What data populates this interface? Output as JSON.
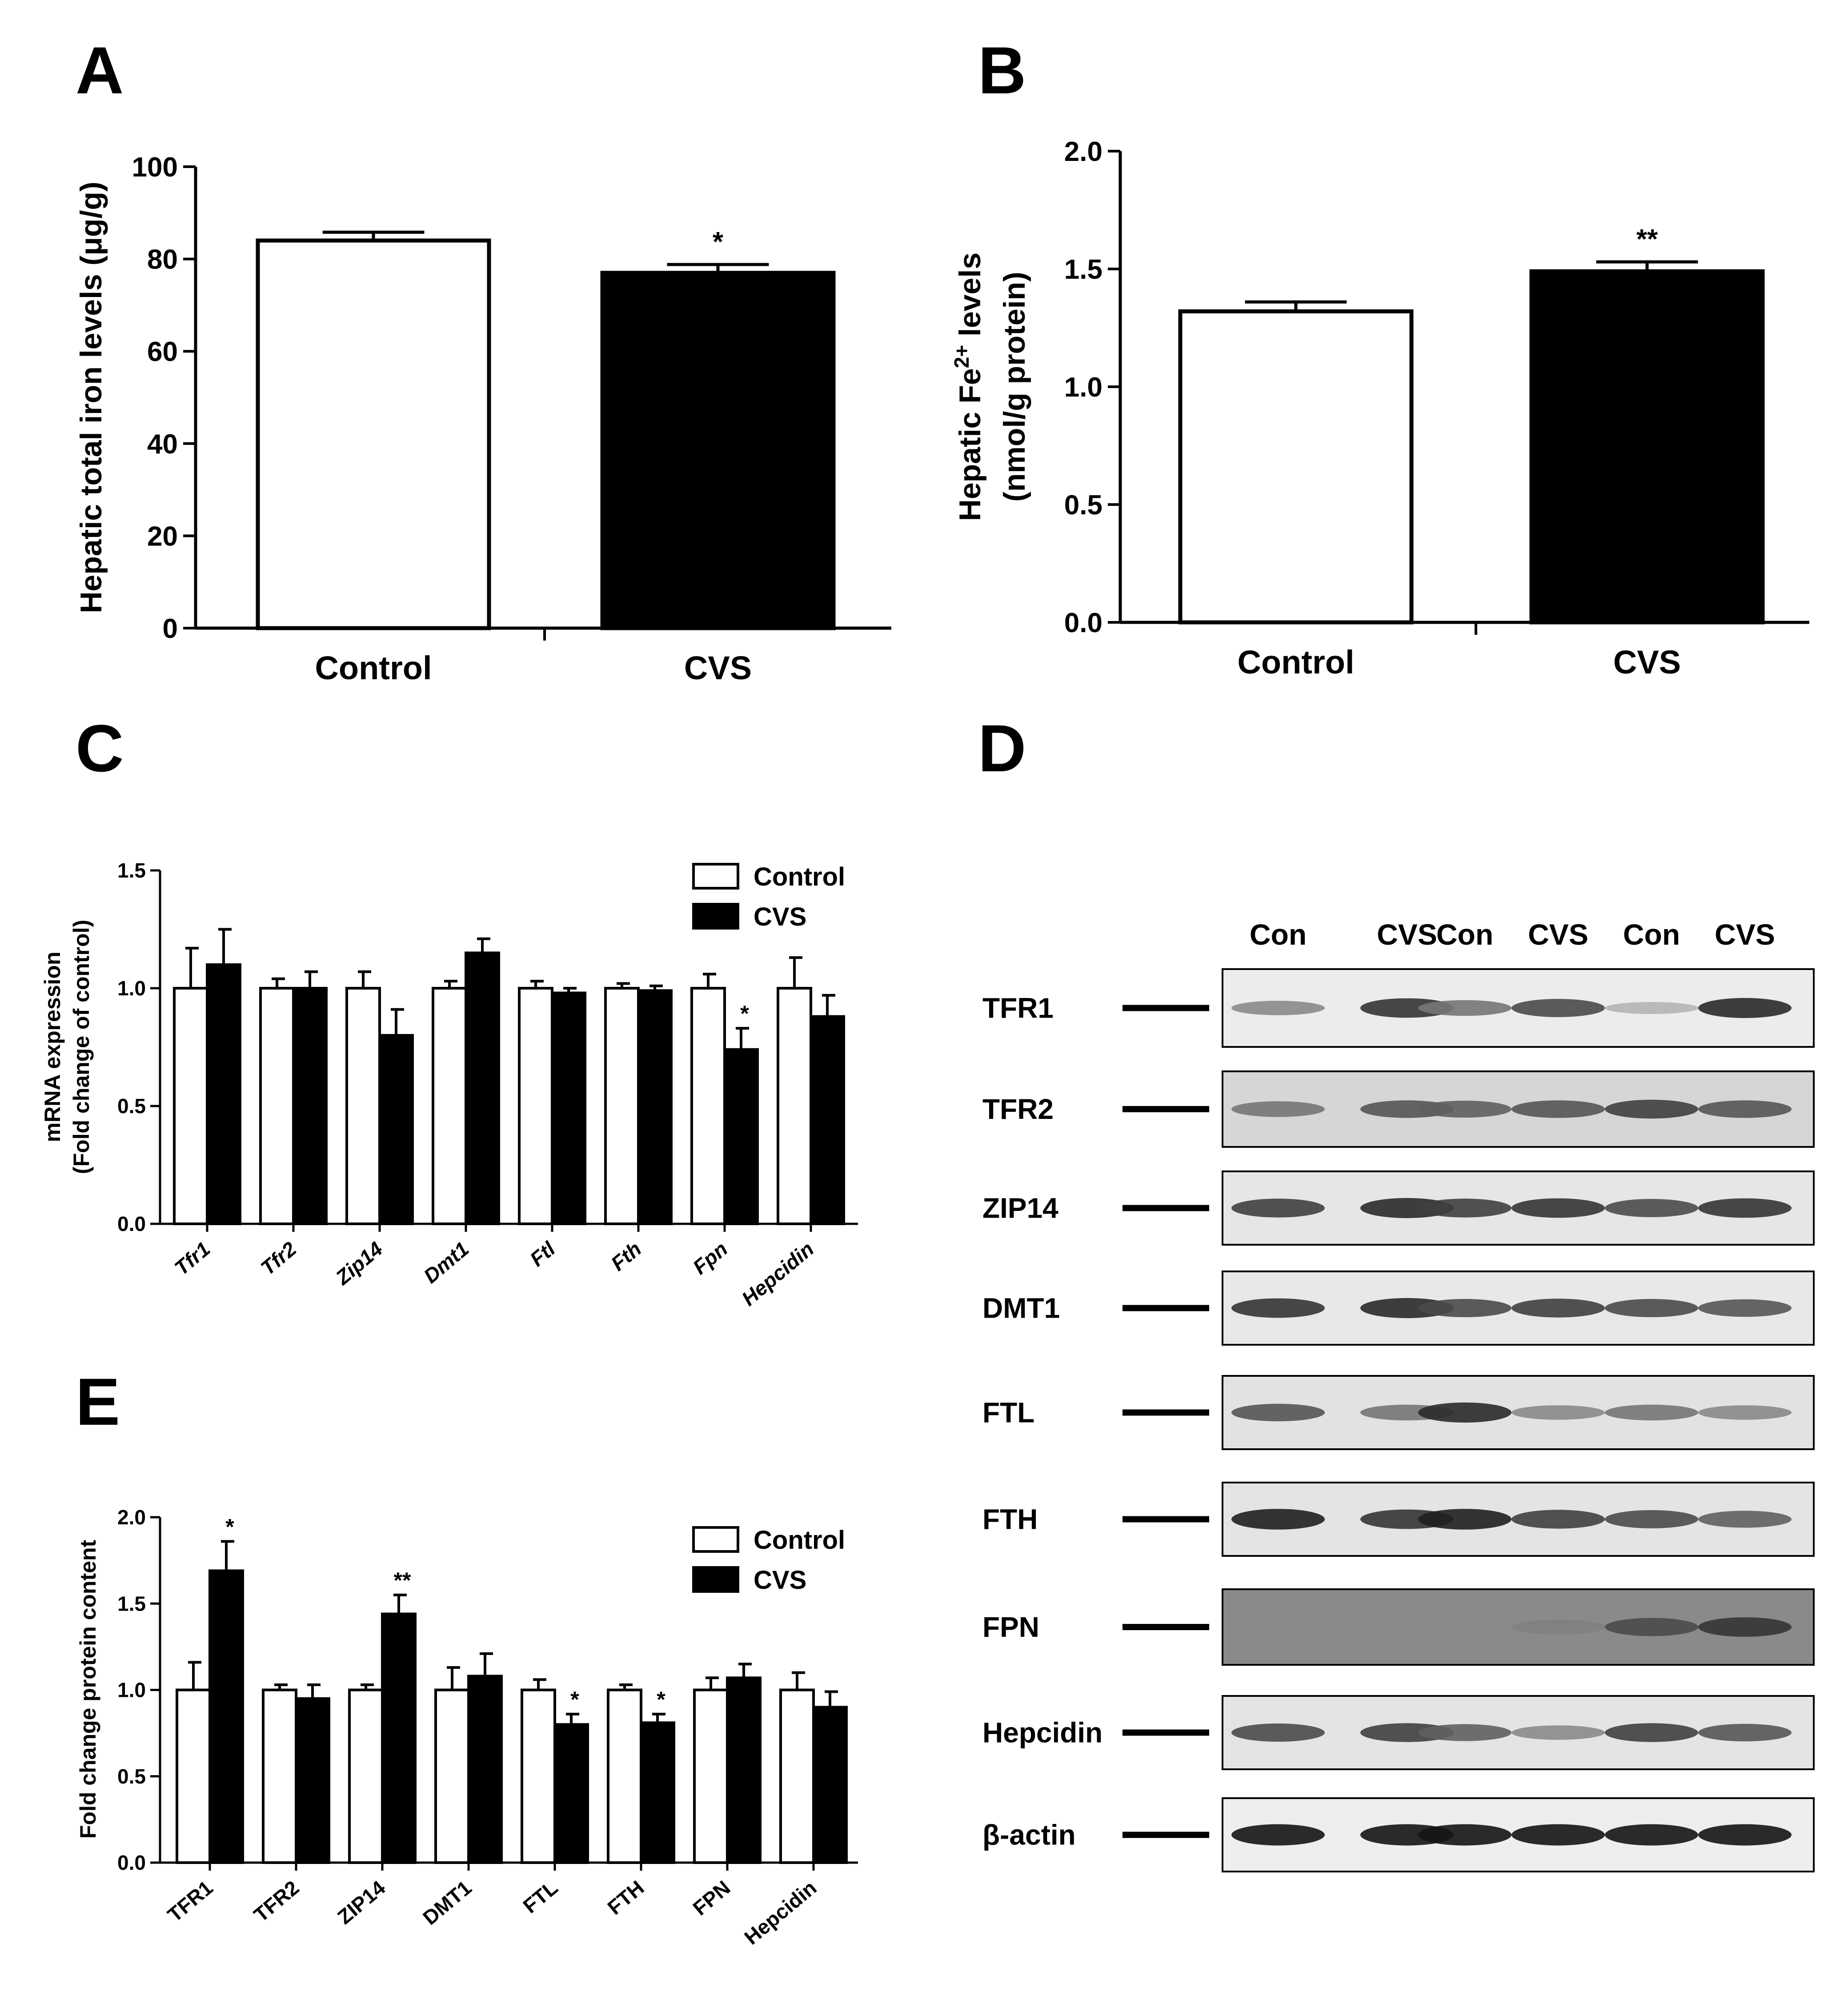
{
  "panels": {
    "A": {
      "letter": "A"
    },
    "B": {
      "letter": "B"
    },
    "C": {
      "letter": "C"
    },
    "D": {
      "letter": "D"
    },
    "E": {
      "letter": "E"
    }
  },
  "chart_data": [
    {
      "id": "A",
      "type": "bar",
      "categories": [
        "Control",
        "CVS"
      ],
      "values": [
        84,
        77
      ],
      "errors": [
        1.8,
        1.8
      ],
      "colors": [
        "#ffffff",
        "#000000"
      ],
      "significance": [
        "",
        "*"
      ],
      "ylabel": "Hepatic total iron levels (μg/g)",
      "ylim": [
        0,
        100
      ],
      "yticks": [
        0,
        20,
        40,
        60,
        80,
        100
      ],
      "ytick_labels": [
        "0",
        "20",
        "40",
        "60",
        "80",
        "100"
      ]
    },
    {
      "id": "B",
      "type": "bar",
      "categories": [
        "Control",
        "CVS"
      ],
      "values": [
        1.32,
        1.49
      ],
      "errors": [
        0.04,
        0.04
      ],
      "colors": [
        "#ffffff",
        "#000000"
      ],
      "significance": [
        "",
        "**"
      ],
      "ylabel_main": "Hepatic Fe",
      "ylabel_sup": "2+",
      "ylabel_tail": " levels",
      "ylabel_line2": "(nmol/g protein)",
      "ylim": [
        0,
        2.0
      ],
      "yticks": [
        0,
        0.5,
        1.0,
        1.5,
        2.0
      ],
      "ytick_labels": [
        "0.0",
        "0.5",
        "1.0",
        "1.5",
        "2.0"
      ]
    },
    {
      "id": "C",
      "type": "bar",
      "categories": [
        "Tfr1",
        "Tfr2",
        "Zip14",
        "Dmt1",
        "Ftl",
        "Fth",
        "Fpn",
        "Hepcidin"
      ],
      "series": [
        {
          "name": "Control",
          "color": "#ffffff",
          "values": [
            1.0,
            1.0,
            1.0,
            1.0,
            1.0,
            1.0,
            1.0,
            1.0
          ],
          "errors": [
            0.17,
            0.04,
            0.07,
            0.03,
            0.03,
            0.02,
            0.06,
            0.13
          ]
        },
        {
          "name": "CVS",
          "color": "#000000",
          "values": [
            1.1,
            1.0,
            0.8,
            1.15,
            0.98,
            0.99,
            0.74,
            0.88
          ],
          "errors": [
            0.15,
            0.07,
            0.11,
            0.06,
            0.02,
            0.02,
            0.09,
            0.09
          ]
        }
      ],
      "significance": [
        "",
        "",
        "",
        "",
        "",
        "",
        "*",
        ""
      ],
      "ylabel_line1": "mRNA expression",
      "ylabel_line2": "(Fold change of control)",
      "ylim": [
        0,
        1.5
      ],
      "yticks": [
        0,
        0.5,
        1.0,
        1.5
      ],
      "ytick_labels": [
        "0.0",
        "0.5",
        "1.0",
        "1.5"
      ],
      "legend": "top-right"
    },
    {
      "id": "E",
      "type": "bar",
      "categories": [
        "TFR1",
        "TFR2",
        "ZIP14",
        "DMT1",
        "FTL",
        "FTH",
        "FPN",
        "Hepcidin"
      ],
      "series": [
        {
          "name": "Control",
          "color": "#ffffff",
          "values": [
            1.0,
            1.0,
            1.0,
            1.0,
            1.0,
            1.0,
            1.0,
            1.0
          ],
          "errors": [
            0.16,
            0.03,
            0.03,
            0.13,
            0.06,
            0.03,
            0.07,
            0.1
          ]
        },
        {
          "name": "CVS",
          "color": "#000000",
          "values": [
            1.69,
            0.95,
            1.44,
            1.08,
            0.8,
            0.81,
            1.07,
            0.9
          ],
          "errors": [
            0.17,
            0.08,
            0.11,
            0.13,
            0.06,
            0.05,
            0.08,
            0.09
          ]
        }
      ],
      "significance": [
        "*",
        "",
        "**",
        "",
        "*",
        "*",
        "",
        ""
      ],
      "ylabel": "Fold change protein content",
      "ylim": [
        0,
        2.0
      ],
      "yticks": [
        0,
        0.5,
        1.0,
        1.5,
        2.0
      ],
      "ytick_labels": [
        "0.0",
        "0.5",
        "1.0",
        "1.5",
        "2.0"
      ],
      "legend": "top-right"
    }
  ],
  "blot": {
    "lanes": [
      "Con",
      "CVS",
      "Con",
      "CVS",
      "Con",
      "CVS"
    ],
    "rows": [
      {
        "label": "TFR1",
        "bg": "#ececec",
        "intensity": [
          0.45,
          0.85,
          0.55,
          0.75,
          0.25,
          0.9
        ]
      },
      {
        "label": "TFR2",
        "bg": "#d6d6d6",
        "intensity": [
          0.55,
          0.7,
          0.65,
          0.7,
          0.8,
          0.7
        ]
      },
      {
        "label": "ZIP14",
        "bg": "#e6e6e6",
        "intensity": [
          0.8,
          0.9,
          0.8,
          0.85,
          0.75,
          0.85
        ]
      },
      {
        "label": "DMT1",
        "bg": "#e8e8e8",
        "intensity": [
          0.85,
          0.9,
          0.75,
          0.8,
          0.75,
          0.7
        ]
      },
      {
        "label": "FTL",
        "bg": "#e2e2e2",
        "intensity": [
          0.7,
          0.55,
          0.9,
          0.45,
          0.55,
          0.45
        ]
      },
      {
        "label": "FTH",
        "bg": "#e4e4e4",
        "intensity": [
          0.95,
          0.85,
          0.95,
          0.8,
          0.75,
          0.65
        ]
      },
      {
        "label": "FPN",
        "bg": "#8a8a8a",
        "intensity": [
          0.45,
          0.45,
          0.45,
          0.5,
          0.75,
          0.85
        ]
      },
      {
        "label": "Hepcidin",
        "bg": "#e4e4e4",
        "intensity": [
          0.75,
          0.8,
          0.65,
          0.45,
          0.8,
          0.7
        ]
      },
      {
        "label": "β-actin",
        "bg": "#eeeeee",
        "intensity": [
          1.0,
          1.0,
          1.0,
          1.0,
          1.0,
          1.0
        ]
      }
    ]
  }
}
